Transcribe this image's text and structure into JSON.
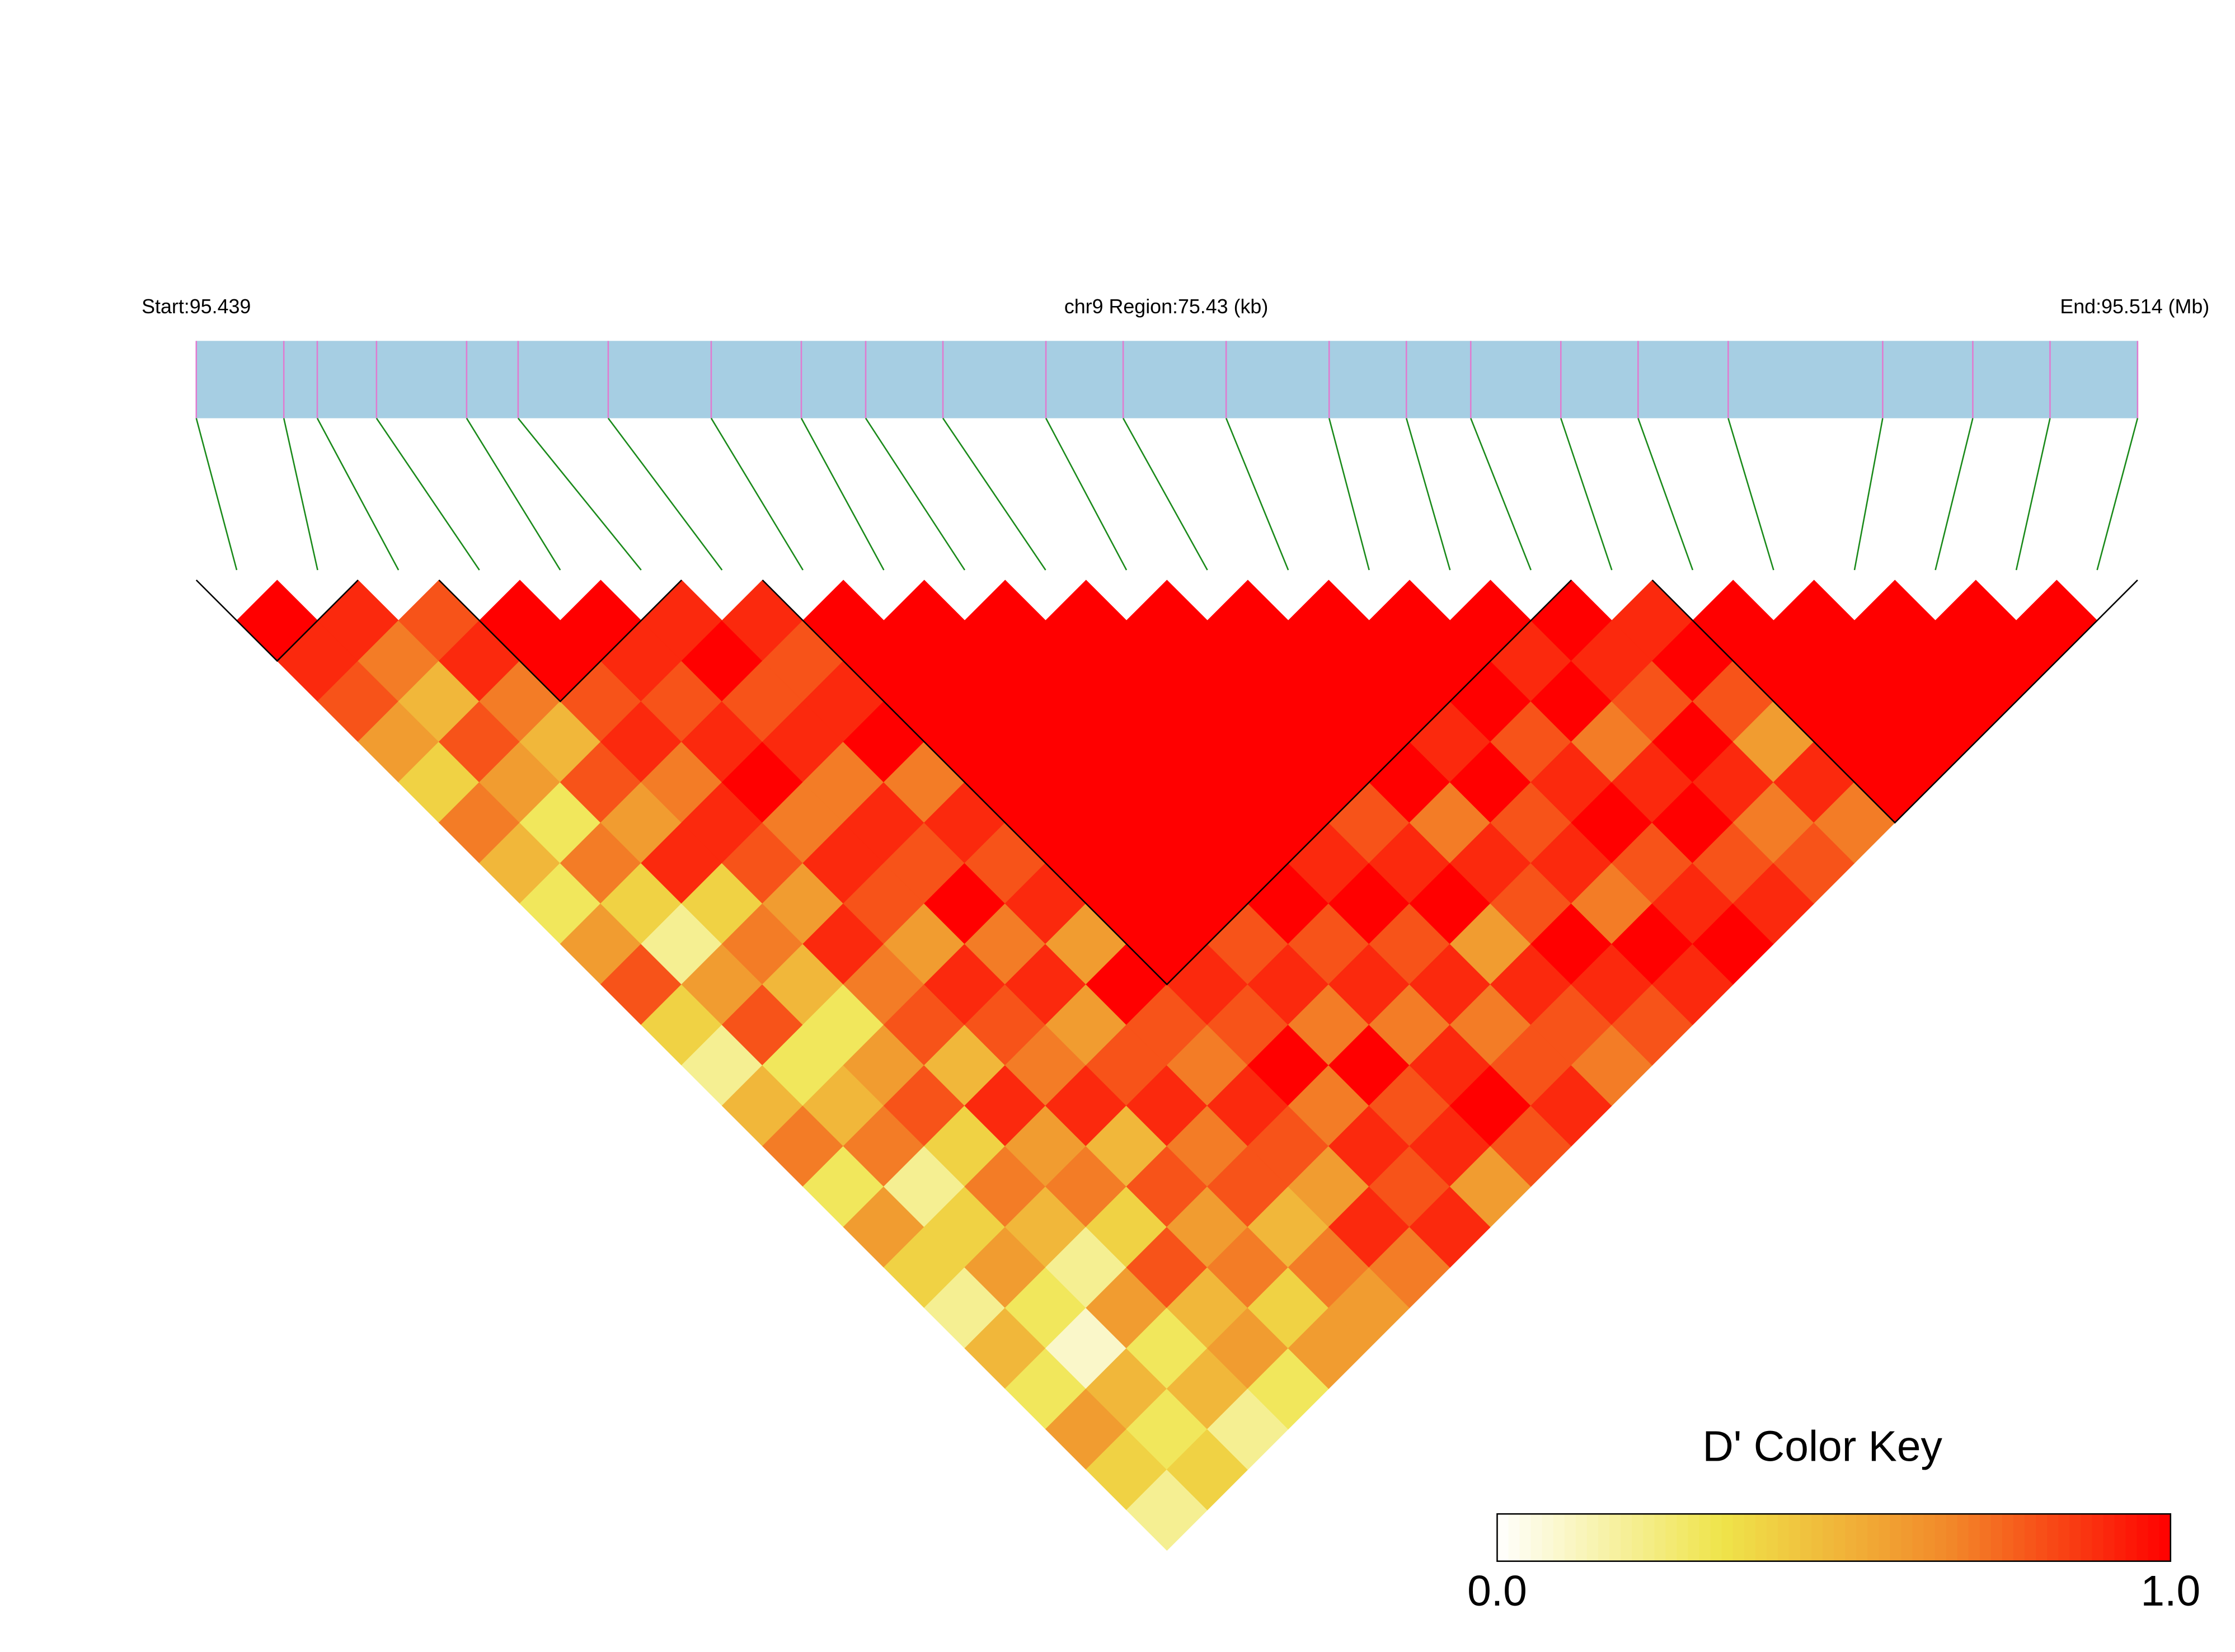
{
  "chart_data": {
    "type": "ld_heatmap",
    "start_label": "Start:95.439",
    "region_label": "chr9 Region:75.43 (kb)",
    "end_label": "End:95.514 (Mb)",
    "positions": [
      95.439,
      95.4424,
      95.4437,
      95.446,
      95.4495,
      95.4515,
      95.455,
      95.459,
      95.4625,
      95.465,
      95.468,
      95.472,
      95.475,
      95.479,
      95.483,
      95.486,
      95.4885,
      95.492,
      95.495,
      95.4985,
      95.5045,
      95.508,
      95.511,
      95.5144
    ],
    "dprime": [
      [
        1,
        0.9,
        0.8,
        0.6,
        0.4,
        0.7,
        0.5,
        0.3,
        0.6,
        0.8,
        0.4,
        0.2,
        0.5,
        0.7,
        0.3,
        0.6,
        0.4,
        0.2,
        0.5,
        0.3,
        0.6,
        0.4,
        0.2
      ],
      [
        0.9,
        0.7,
        0.5,
        0.8,
        0.6,
        0.3,
        0.7,
        0.4,
        0.2,
        0.6,
        0.8,
        0.3,
        0.5,
        0.7,
        0.2,
        0.4,
        0.6,
        0.3,
        0.1,
        0.5,
        0.3,
        0.4
      ],
      [
        0.8,
        0.9,
        0.7,
        0.5,
        0.8,
        0.6,
        0.9,
        0.4,
        0.7,
        0.5,
        0.3,
        0.6,
        0.8,
        0.4,
        0.7,
        0.5,
        0.2,
        0.6,
        0.3,
        0.5,
        0.2
      ],
      [
        1,
        1,
        0.8,
        0.9,
        0.7,
        0.9,
        0.8,
        0.6,
        0.9,
        0.7,
        0.8,
        0.5,
        0.9,
        0.6,
        0.7,
        0.4,
        0.8,
        0.5,
        0.6,
        0.3
      ],
      [
        1,
        0.9,
        0.8,
        0.9,
        1,
        0.7,
        0.9,
        0.8,
        0.6,
        0.9,
        0.8,
        0.7,
        0.9,
        0.5,
        0.8,
        0.6,
        0.7,
        0.4,
        0.6
      ],
      [
        0.9,
        1,
        0.8,
        0.9,
        0.7,
        0.9,
        0.8,
        1,
        0.7,
        0.9,
        0.6,
        0.8,
        0.9,
        0.7,
        0.8,
        0.5,
        0.7,
        0.6
      ],
      [
        0.9,
        0.8,
        0.9,
        1,
        0.7,
        0.9,
        0.8,
        0.9,
        0.6,
        1,
        0.8,
        0.7,
        0.9,
        0.8,
        0.6,
        0.9,
        0.7
      ],
      [
        1,
        1,
        1,
        1,
        1,
        1,
        1,
        1,
        1,
        0.9,
        0.8,
        1,
        0.7,
        0.9,
        0.8,
        0.9
      ],
      [
        1,
        1,
        1,
        1,
        1,
        1,
        1,
        1,
        0.8,
        0.9,
        0.7,
        1,
        0.8,
        0.9,
        0.6
      ],
      [
        1,
        1,
        1,
        1,
        1,
        1,
        1,
        1,
        0.8,
        0.9,
        0.7,
        0.9,
        1,
        0.8
      ],
      [
        1,
        1,
        1,
        1,
        1,
        1,
        0.9,
        1,
        0.8,
        0.9,
        0.7,
        0.8,
        0.9
      ],
      [
        1,
        1,
        1,
        1,
        1,
        0.8,
        0.9,
        1,
        0.6,
        0.9,
        0.8,
        0.7
      ],
      [
        1,
        1,
        1,
        1,
        1,
        0.7,
        0.9,
        0.8,
        1,
        0.9,
        0.8
      ],
      [
        1,
        1,
        1,
        0.9,
        1,
        0.8,
        0.9,
        0.7,
        1,
        0.9
      ],
      [
        1,
        1,
        1,
        0.8,
        0.9,
        1,
        0.8,
        0.9,
        1
      ],
      [
        1,
        0.9,
        1,
        0.7,
        0.9,
        1,
        0.8,
        0.9
      ],
      [
        1,
        0.9,
        0.8,
        1,
        0.9,
        0.7,
        0.8
      ],
      [
        0.9,
        1,
        0.8,
        0.6,
        0.9,
        0.7
      ],
      [
        1,
        1,
        1,
        1,
        1
      ],
      [
        1,
        1,
        1,
        1
      ],
      [
        1,
        1,
        1
      ],
      [
        1,
        1
      ],
      [
        1
      ]
    ],
    "blocks": [
      [
        0,
        1
      ],
      [
        3,
        5
      ],
      [
        7,
        16
      ],
      [
        18,
        23
      ]
    ],
    "color_scale": [
      "#ffffff",
      "#efe44a",
      "#f28a2a",
      "#ff0000"
    ],
    "color_key": {
      "title": "D' Color Key",
      "lim": [
        0,
        1
      ],
      "ticks": [
        {
          "value": 0,
          "label": "0.0"
        },
        {
          "value": 1,
          "label": "1.0"
        }
      ]
    }
  }
}
